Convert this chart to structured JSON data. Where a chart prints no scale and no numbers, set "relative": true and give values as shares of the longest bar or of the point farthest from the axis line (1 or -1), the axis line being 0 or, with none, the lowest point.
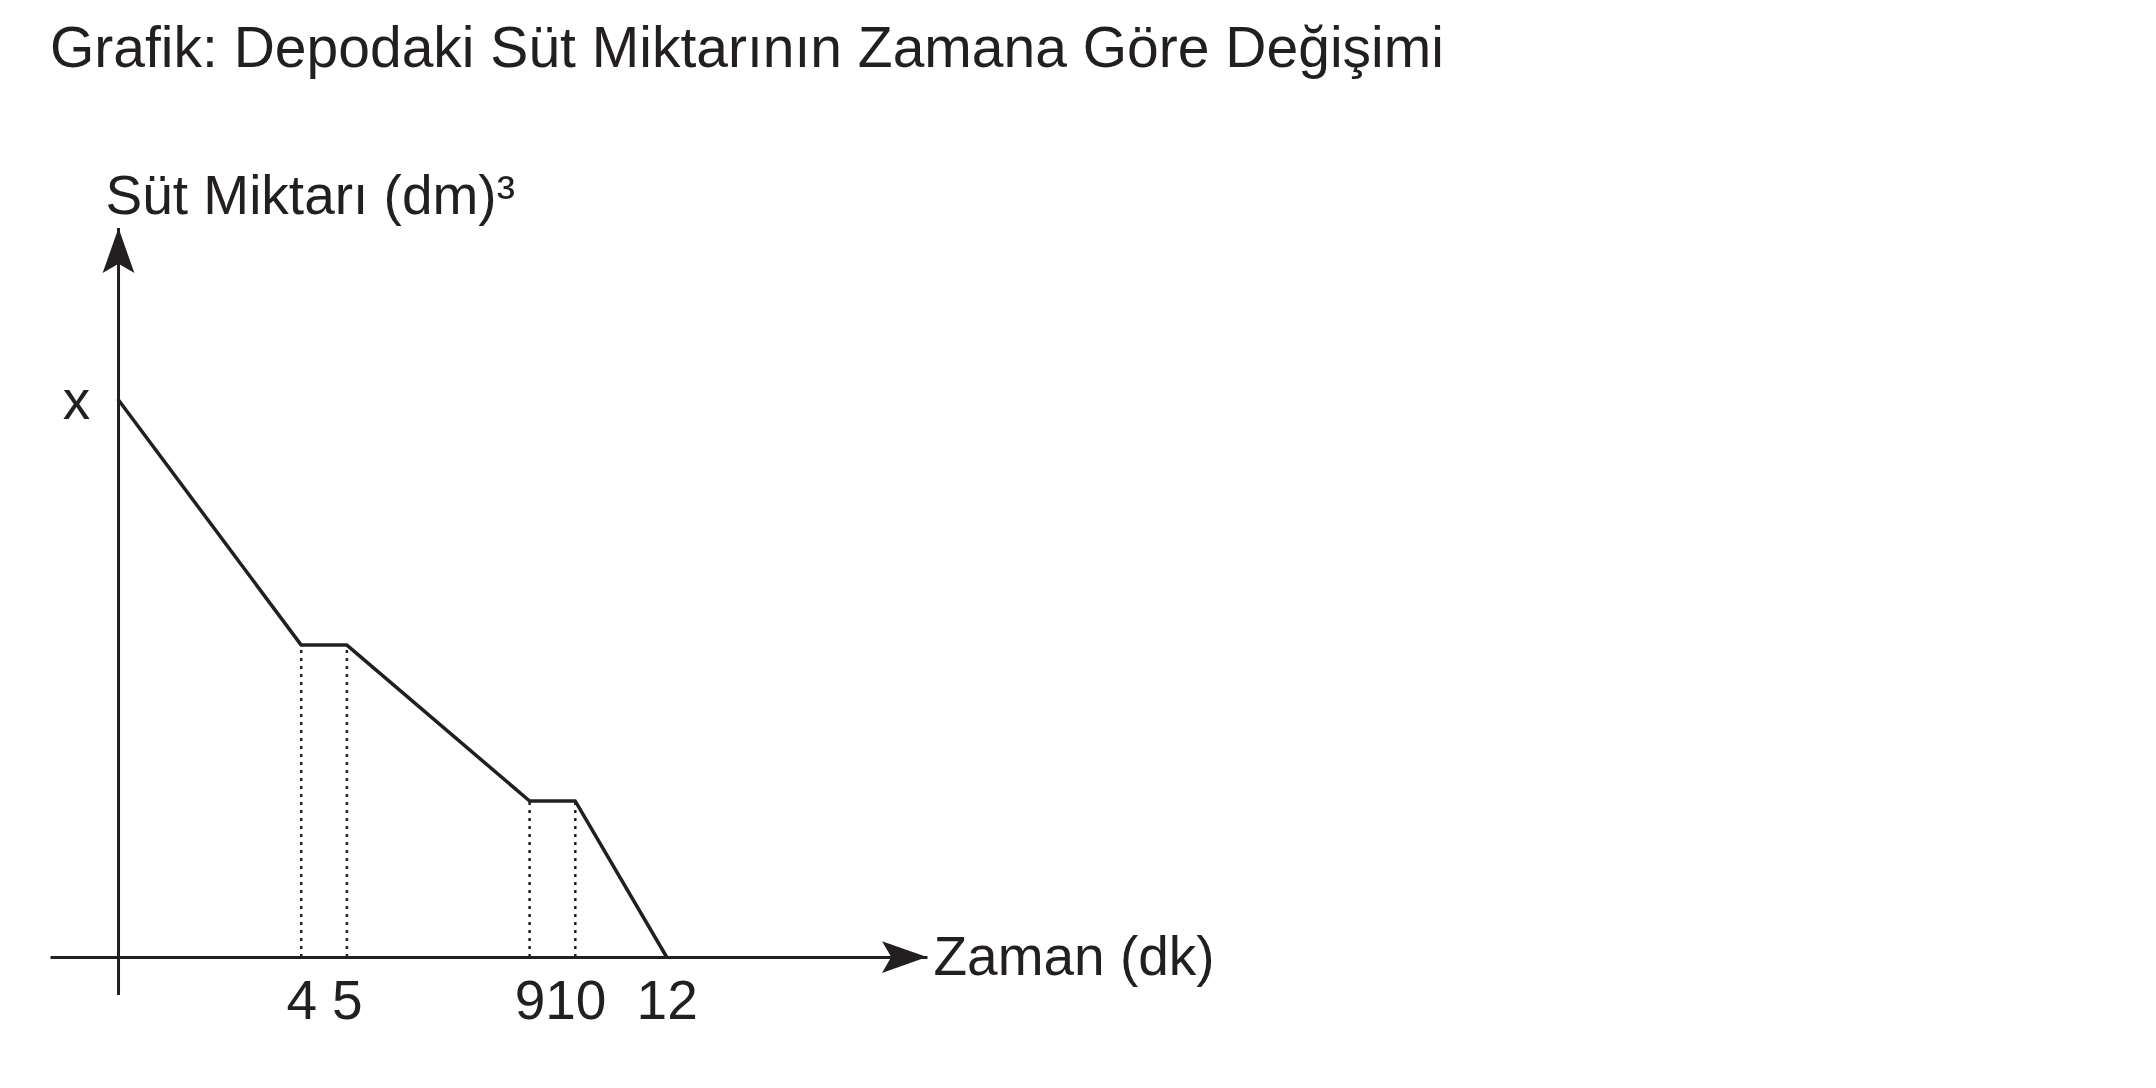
{
  "chart_data": {
    "type": "line",
    "title": "Grafik: Depodaki Süt Miktarının Zamana Göre Değişimi",
    "xlabel": "Zaman (dk)",
    "ylabel": "Süt Miktarı (dm)³",
    "x": [
      0,
      4,
      5,
      9,
      10,
      12
    ],
    "series": [
      {
        "color": "#231f20",
        "values": [
          1,
          0.56,
          0.56,
          0.28,
          0.28,
          0
        ]
      }
    ],
    "relative": true,
    "xlim": [
      -1.5,
      17.7
    ],
    "xticks": [
      4,
      5,
      9,
      10,
      12
    ],
    "annotations": [
      {
        "text": "x",
        "x": 0,
        "y": 1
      }
    ],
    "ref_lines": [
      {
        "axis": "x",
        "value": 4,
        "line_style": "dotted",
        "color": "#231f20"
      },
      {
        "axis": "x",
        "value": 5,
        "line_style": "dotted",
        "color": "#231f20"
      },
      {
        "axis": "x",
        "value": 9,
        "line_style": "dotted",
        "color": "#231f20"
      },
      {
        "axis": "x",
        "value": 10,
        "line_style": "dotted",
        "color": "#231f20"
      }
    ]
  }
}
